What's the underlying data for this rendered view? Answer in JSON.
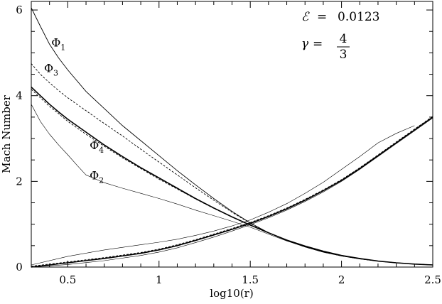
{
  "chart_data": {
    "type": "line",
    "xlabel": "log10(r)",
    "ylabel": "Mach Number",
    "xlim": [
      0.3,
      2.5
    ],
    "ylim": [
      0,
      6.2
    ],
    "x_ticks": [
      {
        "value": 0.5,
        "label": "0.5"
      },
      {
        "value": 1,
        "label": "1"
      },
      {
        "value": 1.5,
        "label": "1.5"
      },
      {
        "value": 2,
        "label": "2"
      },
      {
        "value": 2.5,
        "label": "2.5"
      }
    ],
    "y_ticks": [
      {
        "value": 0,
        "label": "0"
      },
      {
        "value": 2,
        "label": "2"
      },
      {
        "value": 4,
        "label": "4"
      },
      {
        "value": 6,
        "label": "6"
      }
    ],
    "grid": false,
    "legend": "none",
    "annotations": {
      "epsilon_symbol": "ℰ",
      "epsilon_eq": "=",
      "epsilon_value": "0.0123",
      "gamma_symbol": "γ",
      "gamma_eq": "=",
      "gamma_num": "4",
      "gamma_den": "3"
    },
    "series_labels": [
      {
        "label": "Φ",
        "sub": "1",
        "x": 0.41,
        "y": 5.15
      },
      {
        "label": "Φ",
        "sub": "3",
        "x": 0.37,
        "y": 4.55
      },
      {
        "label": "Φ",
        "sub": "4",
        "x": 0.62,
        "y": 2.75
      },
      {
        "label": "Φ",
        "sub": "2",
        "x": 0.62,
        "y": 2.05
      }
    ],
    "series": [
      {
        "x": [
          0.3,
          0.35,
          0.4,
          0.45,
          0.5,
          0.6,
          0.7,
          0.8,
          0.9,
          1.0,
          1.1,
          1.2,
          1.3,
          1.4,
          1.5,
          1.6,
          1.7,
          1.8,
          1.9,
          2.0,
          2.1,
          2.2,
          2.3,
          2.4,
          2.5
        ],
        "y": [
          6.05,
          5.62,
          5.2,
          4.88,
          4.6,
          4.1,
          3.7,
          3.3,
          2.95,
          2.6,
          2.25,
          1.92,
          1.6,
          1.3,
          1.03,
          0.8,
          0.62,
          0.47,
          0.35,
          0.26,
          0.19,
          0.14,
          0.1,
          0.07,
          0.05
        ],
        "dash": "solid"
      },
      {
        "x": [
          0.3,
          0.35,
          0.4,
          0.45,
          0.5,
          0.6,
          0.7,
          0.8,
          0.9,
          1.0,
          1.1,
          1.2,
          1.3,
          1.4,
          1.5,
          1.6,
          1.7,
          1.8,
          1.9,
          2.0,
          2.1,
          2.2,
          2.3,
          2.4,
          2.5
        ],
        "y": [
          4.75,
          4.5,
          4.3,
          4.12,
          3.95,
          3.65,
          3.35,
          3.06,
          2.75,
          2.45,
          2.15,
          1.85,
          1.56,
          1.28,
          1.02,
          0.8,
          0.62,
          0.47,
          0.35,
          0.26,
          0.19,
          0.14,
          0.1,
          0.07,
          0.05
        ],
        "dash": "dashed"
      },
      {
        "x": [
          0.3,
          0.35,
          0.4,
          0.45,
          0.5,
          0.6,
          0.7,
          0.8,
          0.9,
          1.0,
          1.1,
          1.2,
          1.3,
          1.4,
          1.5,
          1.6,
          1.7,
          1.8,
          1.9,
          2.0,
          2.1,
          2.2,
          2.3,
          2.4,
          2.5
        ],
        "y": [
          4.2,
          4.0,
          3.8,
          3.62,
          3.45,
          3.15,
          2.85,
          2.58,
          2.32,
          2.08,
          1.84,
          1.6,
          1.38,
          1.17,
          0.98,
          0.8,
          0.63,
          0.49,
          0.37,
          0.27,
          0.2,
          0.14,
          0.1,
          0.07,
          0.05
        ],
        "dash": "solid",
        "bold": true
      },
      {
        "x": [
          0.3,
          0.35,
          0.4,
          0.45,
          0.5,
          0.6,
          0.7,
          0.8,
          0.9,
          1.0,
          1.1,
          1.2,
          1.3,
          1.4,
          1.5,
          1.6,
          1.7,
          1.8,
          1.9,
          2.0,
          2.1,
          2.2,
          2.3,
          2.4,
          2.5
        ],
        "y": [
          4.15,
          3.95,
          3.75,
          3.58,
          3.4,
          3.1,
          2.82,
          2.55,
          2.3,
          2.05,
          1.82,
          1.59,
          1.37,
          1.17,
          0.98,
          0.8,
          0.63,
          0.49,
          0.37,
          0.27,
          0.2,
          0.14,
          0.1,
          0.07,
          0.05
        ],
        "dash": "dashed"
      },
      {
        "x": [
          0.3,
          0.35,
          0.4,
          0.45,
          0.5,
          0.55,
          0.6,
          0.7,
          0.8,
          0.9,
          1.0,
          1.1,
          1.2,
          1.3,
          1.4,
          1.5,
          1.6,
          1.7,
          1.8,
          1.9,
          2.0,
          2.1,
          2.2,
          2.3,
          2.4,
          2.5
        ],
        "y": [
          3.8,
          3.4,
          3.1,
          2.85,
          2.62,
          2.38,
          2.15,
          1.97,
          1.84,
          1.72,
          1.6,
          1.47,
          1.33,
          1.2,
          1.07,
          0.93,
          0.77,
          0.61,
          0.47,
          0.35,
          0.26,
          0.19,
          0.14,
          0.1,
          0.07,
          0.05
        ],
        "dash": "solid",
        "thin": true
      },
      {
        "x": [
          0.3,
          0.5,
          0.7,
          0.9,
          1.0,
          1.1,
          1.2,
          1.3,
          1.4,
          1.5,
          1.6,
          1.7,
          1.8,
          1.9,
          2.0,
          2.1,
          2.2,
          2.3,
          2.4
        ],
        "y": [
          0.05,
          0.25,
          0.4,
          0.52,
          0.58,
          0.65,
          0.74,
          0.84,
          0.96,
          1.1,
          1.28,
          1.48,
          1.72,
          1.98,
          2.28,
          2.58,
          2.9,
          3.12,
          3.3
        ],
        "dash": "solid",
        "thin": true
      },
      {
        "x": [
          0.3,
          0.5,
          0.7,
          0.9,
          1.0,
          1.1,
          1.2,
          1.3,
          1.4,
          1.5,
          1.6,
          1.7,
          1.8,
          1.9,
          2.0,
          2.1,
          2.2,
          2.3,
          2.4,
          2.5
        ],
        "y": [
          0.0,
          0.1,
          0.2,
          0.32,
          0.4,
          0.5,
          0.62,
          0.75,
          0.88,
          1.02,
          1.18,
          1.36,
          1.56,
          1.78,
          2.02,
          2.3,
          2.6,
          2.9,
          3.2,
          3.5
        ],
        "dash": "solid",
        "bold": true
      },
      {
        "x": [
          0.3,
          0.5,
          0.7,
          0.9,
          1.0,
          1.1,
          1.2,
          1.3,
          1.4,
          1.5,
          1.6,
          1.7,
          1.8,
          1.9,
          2.0,
          2.1,
          2.2,
          2.3,
          2.4,
          2.5
        ],
        "y": [
          0.02,
          0.12,
          0.22,
          0.34,
          0.42,
          0.52,
          0.64,
          0.77,
          0.9,
          1.04,
          1.2,
          1.38,
          1.58,
          1.8,
          2.04,
          2.32,
          2.62,
          2.92,
          3.22,
          3.52
        ],
        "dash": "dashed"
      },
      {
        "x": [
          0.3,
          0.5,
          0.7,
          0.9,
          1.0,
          1.1,
          1.2,
          1.3,
          1.4,
          1.5,
          1.6,
          1.7,
          1.8,
          1.9,
          2.0,
          2.1,
          2.2,
          2.3,
          2.4,
          2.5
        ],
        "y": [
          0.0,
          0.06,
          0.15,
          0.27,
          0.35,
          0.45,
          0.57,
          0.7,
          0.84,
          0.99,
          1.15,
          1.33,
          1.53,
          1.75,
          2.0,
          2.28,
          2.58,
          2.88,
          3.18,
          3.48
        ],
        "dash": "solid",
        "thin": true
      }
    ]
  }
}
